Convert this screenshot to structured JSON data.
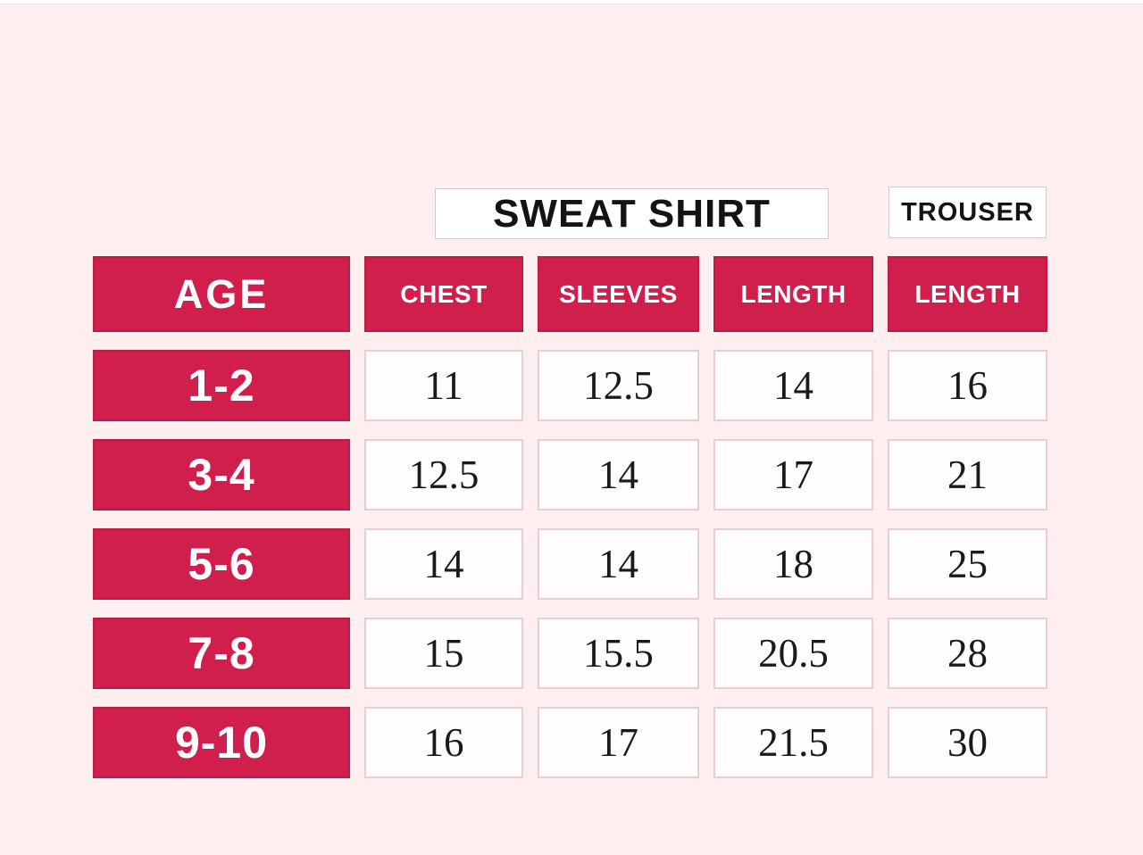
{
  "page": {
    "background_color": "#fdeef0",
    "accent_red": "#d11f4d"
  },
  "header": {
    "sweatshirt_label": "SWEAT SHIRT",
    "trouser_label": "TROUSER"
  },
  "table": {
    "age_header": "AGE",
    "columns": [
      "CHEST",
      "SLEEVES",
      "LENGTH",
      "LENGTH"
    ],
    "rows": [
      {
        "age": "1-2",
        "values": [
          "11",
          "12.5",
          "14",
          "16"
        ]
      },
      {
        "age": "3-4",
        "values": [
          "12.5",
          "14",
          "17",
          "21"
        ]
      },
      {
        "age": "5-6",
        "values": [
          "14",
          "14",
          "18",
          "25"
        ]
      },
      {
        "age": "7-8",
        "values": [
          "15",
          "15.5",
          "20.5",
          "28"
        ]
      },
      {
        "age": "9-10",
        "values": [
          "16",
          "17",
          "21.5",
          "30"
        ]
      }
    ]
  },
  "chart_data": {
    "type": "table",
    "title_groups": [
      {
        "label": "SWEAT SHIRT",
        "columns": [
          "CHEST",
          "SLEEVES",
          "LENGTH"
        ]
      },
      {
        "label": "TROUSER",
        "columns": [
          "LENGTH"
        ]
      }
    ],
    "columns": [
      "AGE",
      "CHEST",
      "SLEEVES",
      "LENGTH",
      "LENGTH (TROUSER)"
    ],
    "rows": [
      [
        "1-2",
        11,
        12.5,
        14,
        16
      ],
      [
        "3-4",
        12.5,
        14,
        17,
        21
      ],
      [
        "5-6",
        14,
        14,
        18,
        25
      ],
      [
        "7-8",
        15,
        15.5,
        20.5,
        28
      ],
      [
        "9-10",
        16,
        17,
        21.5,
        30
      ]
    ]
  }
}
